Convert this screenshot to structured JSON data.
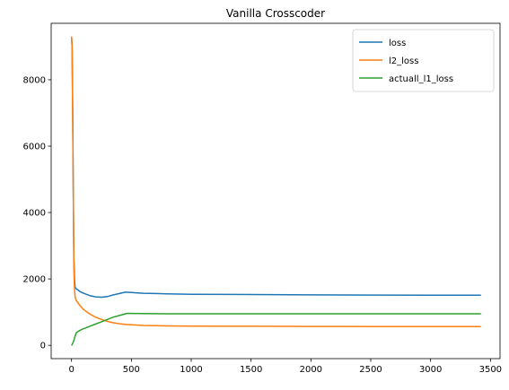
{
  "chart_data": {
    "type": "line",
    "title": "Vanilla Crosscoder",
    "xlabel": "",
    "ylabel": "",
    "xlim": [
      -170,
      3580
    ],
    "ylim": [
      -400,
      9700
    ],
    "xticks": [
      0,
      500,
      1000,
      1500,
      2000,
      2500,
      3000,
      3500
    ],
    "yticks": [
      0,
      2000,
      4000,
      6000,
      8000
    ],
    "grid": false,
    "legend_position": "top-right",
    "series": [
      {
        "name": "loss",
        "color": "#1f77b4",
        "x": [
          0,
          5,
          10,
          15,
          20,
          25,
          30,
          35,
          40,
          50,
          70,
          100,
          150,
          200,
          250,
          300,
          350,
          400,
          450,
          500,
          600,
          700,
          800,
          1000,
          1500,
          2000,
          2500,
          3000,
          3420
        ],
        "y": [
          9300,
          9000,
          7000,
          4500,
          2600,
          2000,
          1750,
          1720,
          1700,
          1680,
          1620,
          1570,
          1500,
          1460,
          1450,
          1470,
          1520,
          1560,
          1600,
          1590,
          1570,
          1560,
          1550,
          1540,
          1530,
          1520,
          1515,
          1510,
          1510
        ]
      },
      {
        "name": "l2_loss",
        "color": "#ff7f0e",
        "x": [
          0,
          5,
          10,
          15,
          20,
          25,
          30,
          35,
          40,
          50,
          70,
          100,
          150,
          200,
          250,
          300,
          350,
          400,
          450,
          500,
          600,
          700,
          800,
          1000,
          1500,
          2000,
          2500,
          3000,
          3420
        ],
        "y": [
          9300,
          9000,
          6800,
          4300,
          2300,
          1700,
          1450,
          1400,
          1350,
          1300,
          1200,
          1080,
          950,
          850,
          780,
          720,
          680,
          650,
          630,
          620,
          600,
          590,
          585,
          580,
          575,
          570,
          568,
          566,
          565
        ]
      },
      {
        "name": "actuall_l1_loss",
        "color": "#2ca02c",
        "x": [
          0,
          10,
          20,
          30,
          40,
          60,
          80,
          100,
          150,
          200,
          250,
          300,
          350,
          400,
          450,
          470,
          500,
          600,
          800,
          1000,
          1500,
          2000,
          2500,
          3000,
          3420
        ],
        "y": [
          0,
          60,
          150,
          280,
          380,
          430,
          470,
          500,
          570,
          640,
          710,
          780,
          850,
          900,
          950,
          965,
          960,
          955,
          950,
          950,
          950,
          950,
          950,
          950,
          950
        ]
      }
    ]
  }
}
